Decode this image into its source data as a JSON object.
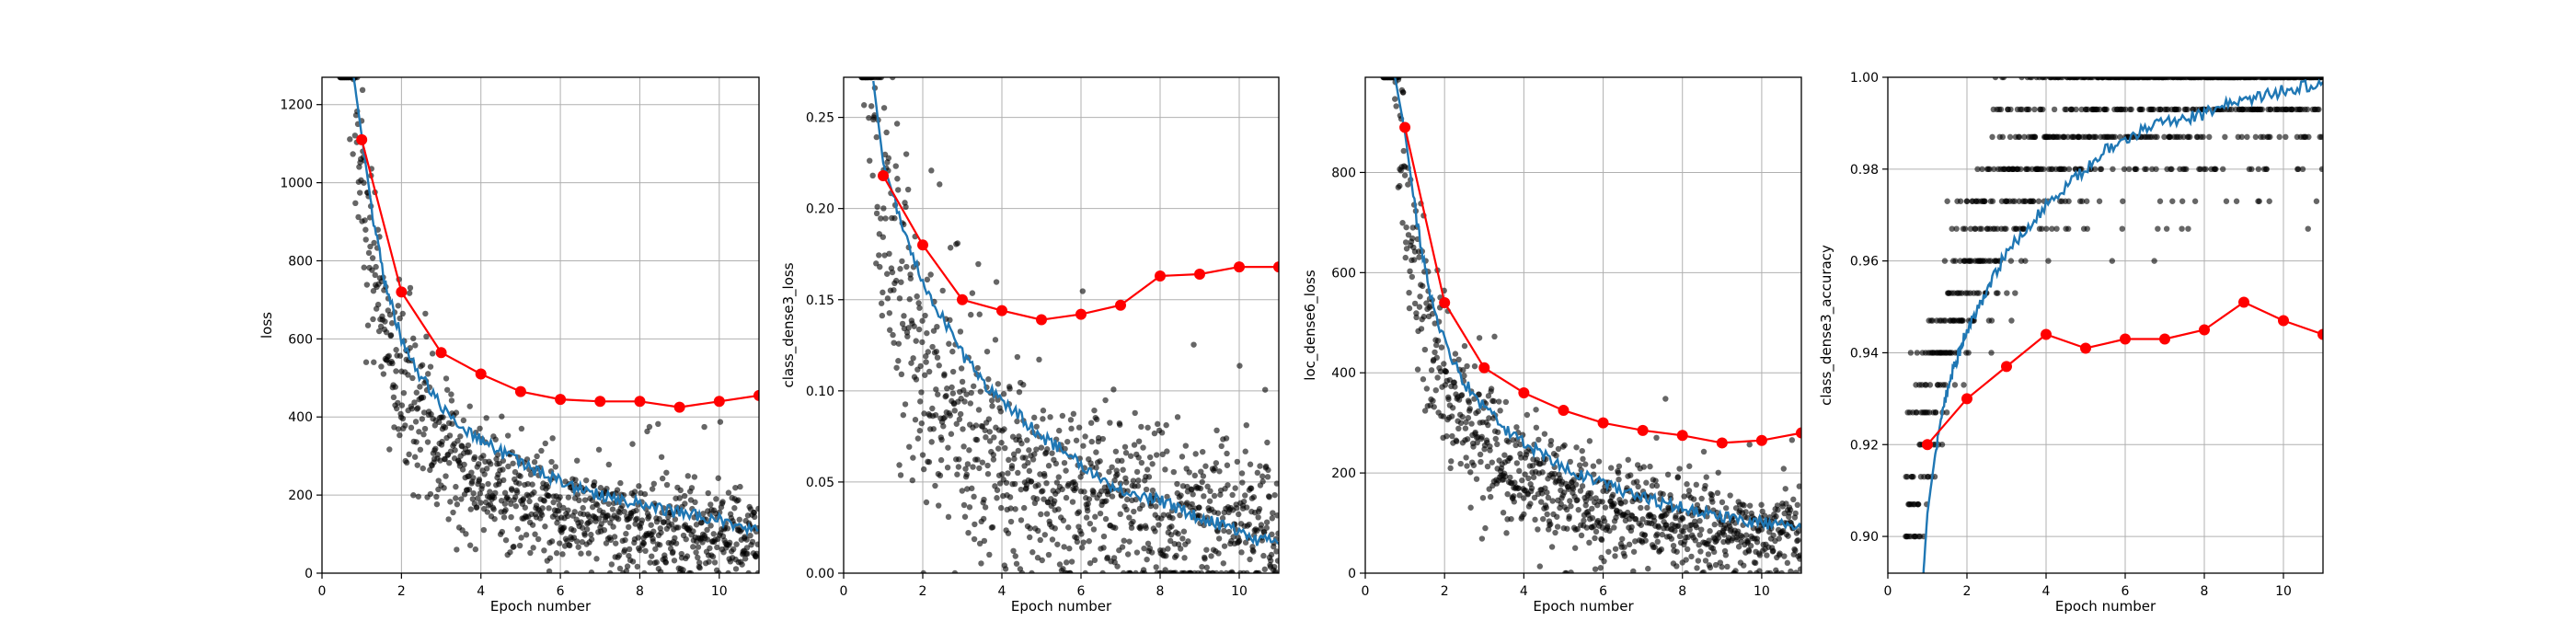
{
  "colors": {
    "scatter": "#000000",
    "train_line": "#1f77b4",
    "val_line": "#ff0000",
    "grid": "#b0b0b0"
  },
  "chart_data": [
    {
      "type": "line",
      "xlabel": "Epoch number",
      "ylabel": "loss",
      "xlim": [
        0,
        11
      ],
      "ylim": [
        0,
        1270
      ],
      "xticks": [
        0,
        2,
        4,
        6,
        8,
        10
      ],
      "yticks": [
        0,
        200,
        400,
        600,
        800,
        1000,
        1200
      ],
      "ytick_labels": [
        "0",
        "200",
        "400",
        "600",
        "800",
        "1000",
        "1200"
      ],
      "grid": true,
      "batch_scatter": {
        "model": "power",
        "a": 1000,
        "b": 1.02,
        "noise": 130,
        "clip": [
          0,
          1270
        ]
      },
      "train_curve": {
        "x": [
          0.8,
          1,
          1.3,
          1.6,
          2,
          2.5,
          3,
          3.5,
          4,
          4.5,
          5,
          5.5,
          6,
          6.5,
          7,
          7.5,
          8,
          8.5,
          9,
          9.5,
          10,
          10.5,
          11
        ],
        "y": [
          1270,
          1120,
          900,
          740,
          600,
          500,
          430,
          380,
          340,
          310,
          280,
          255,
          235,
          215,
          200,
          190,
          175,
          165,
          155,
          145,
          135,
          120,
          110
        ]
      },
      "validation": {
        "x": [
          1,
          2,
          3,
          4,
          5,
          6,
          7,
          8,
          9,
          10,
          11
        ],
        "y": [
          1110,
          720,
          565,
          510,
          465,
          445,
          440,
          440,
          425,
          440,
          455
        ]
      }
    },
    {
      "type": "line",
      "xlabel": "Epoch number",
      "ylabel": "class_dense3_loss",
      "xlim": [
        0,
        11
      ],
      "ylim": [
        0,
        0.272
      ],
      "xticks": [
        0,
        2,
        4,
        6,
        8,
        10
      ],
      "yticks": [
        0,
        0.05,
        0.1,
        0.15,
        0.2,
        0.25
      ],
      "ytick_labels": [
        "0.00",
        "0.05",
        "0.10",
        "0.15",
        "0.20",
        "0.25"
      ],
      "grid": true,
      "batch_scatter": {
        "model": "power",
        "a": 0.2,
        "b": 0.85,
        "noise": 0.045,
        "clip": [
          0,
          0.272
        ]
      },
      "train_curve": {
        "x": [
          0.75,
          1,
          1.5,
          2,
          2.5,
          3,
          3.5,
          4,
          4.5,
          5,
          5.5,
          6,
          6.5,
          7,
          7.5,
          8,
          8.5,
          9,
          9.5,
          10,
          10.5,
          11
        ],
        "y": [
          0.27,
          0.225,
          0.19,
          0.16,
          0.14,
          0.12,
          0.105,
          0.095,
          0.085,
          0.075,
          0.068,
          0.06,
          0.052,
          0.045,
          0.042,
          0.04,
          0.035,
          0.03,
          0.027,
          0.022,
          0.018,
          0.016
        ]
      },
      "validation": {
        "x": [
          1,
          2,
          3,
          4,
          5,
          6,
          7,
          8,
          9,
          10,
          11
        ],
        "y": [
          0.218,
          0.18,
          0.15,
          0.144,
          0.139,
          0.142,
          0.147,
          0.163,
          0.164,
          0.168,
          0.168
        ]
      }
    },
    {
      "type": "line",
      "xlabel": "Epoch number",
      "ylabel": "loc_dense6_loss",
      "xlim": [
        0,
        11
      ],
      "ylim": [
        0,
        990
      ],
      "xticks": [
        0,
        2,
        4,
        6,
        8,
        10
      ],
      "yticks": [
        0,
        200,
        400,
        600,
        800
      ],
      "ytick_labels": [
        "0",
        "200",
        "400",
        "600",
        "800"
      ],
      "grid": true,
      "batch_scatter": {
        "model": "power",
        "a": 780,
        "b": 1.0,
        "noise": 100,
        "clip": [
          0,
          990
        ]
      },
      "train_curve": {
        "x": [
          0.75,
          1,
          1.3,
          1.6,
          2,
          2.5,
          3,
          3.5,
          4,
          4.5,
          5,
          5.5,
          6,
          6.5,
          7,
          7.5,
          8,
          8.5,
          9,
          9.5,
          10,
          10.5,
          11
        ],
        "y": [
          990,
          880,
          700,
          570,
          460,
          380,
          330,
          290,
          260,
          235,
          215,
          195,
          180,
          165,
          150,
          140,
          130,
          125,
          115,
          105,
          100,
          95,
          90
        ]
      },
      "validation": {
        "x": [
          1,
          2,
          3,
          4,
          5,
          6,
          7,
          8,
          9,
          10,
          11
        ],
        "y": [
          890,
          540,
          410,
          360,
          325,
          300,
          285,
          275,
          260,
          265,
          280
        ]
      }
    },
    {
      "type": "line",
      "xlabel": "Epoch number",
      "ylabel": "class_dense3_accuracy",
      "xlim": [
        0,
        11
      ],
      "ylim": [
        0.892,
        1.0
      ],
      "xticks": [
        0,
        2,
        4,
        6,
        8,
        10
      ],
      "yticks": [
        0.9,
        0.92,
        0.94,
        0.96,
        0.98,
        1.0
      ],
      "ytick_labels": [
        "0.90",
        "0.92",
        "0.94",
        "0.96",
        "0.98",
        "1.00"
      ],
      "grid": true,
      "batch_scatter": {
        "model": "quantized",
        "levels": [
          0.9,
          0.907,
          0.913,
          0.92,
          0.927,
          0.933,
          0.94,
          0.947,
          0.953,
          0.96,
          0.967,
          0.973,
          0.98,
          0.987,
          0.993,
          1.0
        ],
        "clip": [
          0.892,
          1.0
        ]
      },
      "train_curve": {
        "x": [
          0.9,
          1,
          1.2,
          1.4,
          1.6,
          1.8,
          2,
          2.3,
          2.6,
          3,
          3.5,
          4,
          4.5,
          5,
          5.5,
          6,
          6.5,
          7,
          7.5,
          8,
          8.5,
          9,
          9.5,
          10,
          10.5,
          11
        ],
        "y": [
          0.892,
          0.905,
          0.918,
          0.928,
          0.935,
          0.94,
          0.945,
          0.95,
          0.955,
          0.962,
          0.967,
          0.972,
          0.976,
          0.98,
          0.984,
          0.986,
          0.989,
          0.99,
          0.991,
          0.992,
          0.994,
          0.995,
          0.996,
          0.997,
          0.998,
          0.999
        ]
      },
      "validation": {
        "x": [
          1,
          2,
          3,
          4,
          5,
          6,
          7,
          8,
          9,
          10,
          11
        ],
        "y": [
          0.92,
          0.93,
          0.937,
          0.944,
          0.941,
          0.943,
          0.943,
          0.945,
          0.951,
          0.947,
          0.944
        ]
      }
    }
  ]
}
